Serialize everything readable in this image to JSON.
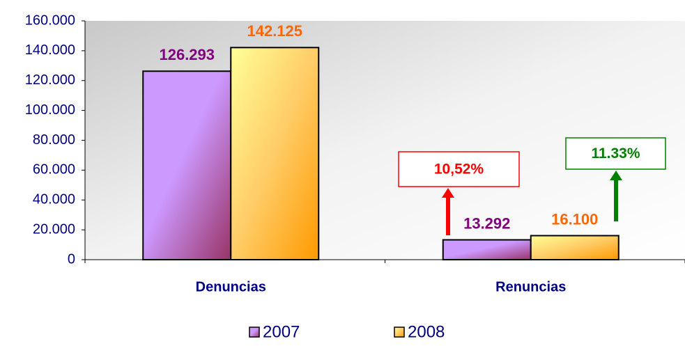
{
  "chart_data": {
    "type": "bar",
    "categories": [
      "Denuncias",
      "Renuncias"
    ],
    "series": [
      {
        "name": "2007",
        "color": "#cc99ff",
        "label_color": "#800080",
        "values": [
          126293,
          13292
        ],
        "value_labels": [
          "126.293",
          "13.292"
        ]
      },
      {
        "name": "2008",
        "color": "#ffcc66",
        "label_color": "#ff6600",
        "values": [
          142125,
          16100
        ],
        "value_labels": [
          "142.125",
          "16.100"
        ]
      }
    ],
    "ylim": [
      0,
      160000
    ],
    "yticks": [
      0,
      {
        "value": 20000,
        "label": "20.000"
      },
      {
        "value": 40000,
        "label": "40.000"
      },
      {
        "value": 60000,
        "label": "60.000"
      },
      {
        "value": 80000,
        "label": "80.000"
      },
      {
        "value": 100000,
        "label": "100.000"
      },
      {
        "value": 120000,
        "label": "120.000"
      },
      {
        "value": 140000,
        "label": "140.000"
      },
      {
        "value": 160000,
        "label": "160.000"
      }
    ],
    "legend": "bottom",
    "annotations": [
      {
        "text": "10,52%",
        "color": "#ff0000"
      },
      {
        "text": "11.33%",
        "color": "#008000"
      }
    ]
  }
}
